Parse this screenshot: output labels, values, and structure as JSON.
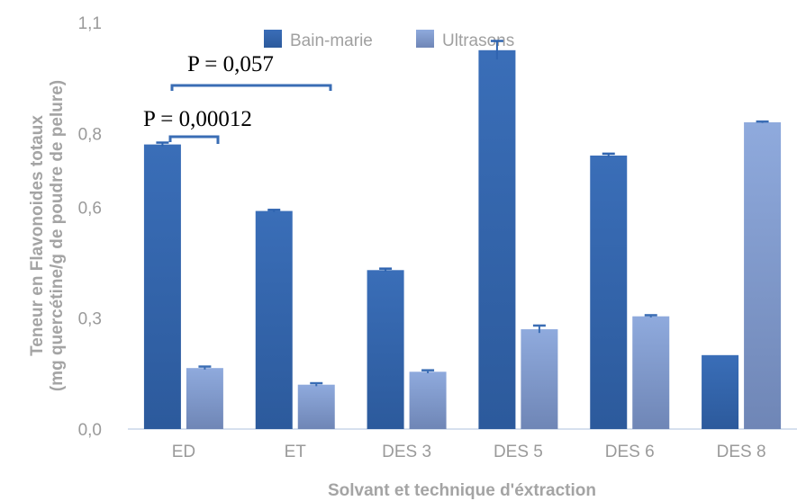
{
  "chart_data": {
    "type": "bar",
    "categories": [
      "ED",
      "ET",
      "DES 3",
      "DES 5",
      "DES 6",
      "DES 8"
    ],
    "series": [
      {
        "name": "Bain-marie",
        "color": "#3A6DB4",
        "values": [
          0.77,
          0.59,
          0.43,
          1.025,
          0.74,
          0.2
        ],
        "errors": [
          0.005,
          0.003,
          0.004,
          0.025,
          0.005,
          0.0
        ]
      },
      {
        "name": "Ultrasons",
        "color": "#8FA9DC",
        "values": [
          0.165,
          0.12,
          0.155,
          0.27,
          0.305,
          0.83
        ],
        "errors": [
          0.004,
          0.004,
          0.004,
          0.01,
          0.003,
          0.002
        ]
      }
    ],
    "xlabel": "Solvant et technique  d'éxtraction",
    "ylabel_line1": "Teneur en Flavonoides  totaux",
    "ylabel_line2": "(mg quercétine/g de poudre de pelure)",
    "ylim": [
      0,
      1.1
    ],
    "yticks": [
      0.0,
      0.3,
      0.6,
      0.8,
      1.1
    ],
    "ytick_labels": [
      "0,0",
      "0,3",
      "0,6",
      "0,8",
      "1,1"
    ],
    "grid": false,
    "legend_position": "top-center",
    "annotations": [
      {
        "text": "P = 0,057",
        "between": [
          "ED",
          "ET"
        ]
      },
      {
        "text": "P = 0,00012",
        "between": [
          "ED Bain-marie",
          "ED Ultrasons"
        ]
      }
    ]
  }
}
